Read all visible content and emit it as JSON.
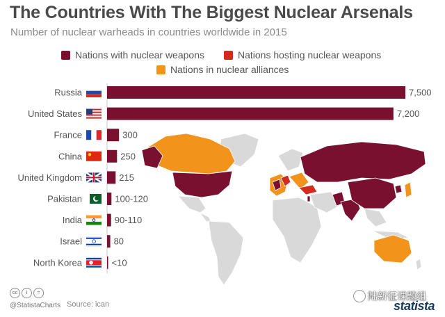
{
  "title": "The Countries With The Biggest Nuclear Arsenals",
  "subtitle": "Number of nuclear warheads in countries worldwide in 2015",
  "legend": [
    {
      "label": "Nations with nuclear weapons",
      "color": "#7a1030"
    },
    {
      "label": "Nations hosting nuclear weapons",
      "color": "#d42a1e"
    },
    {
      "label": "Nations in nuclear alliances",
      "color": "#f2931c"
    }
  ],
  "colors": {
    "bar": "#7a1030",
    "land": "#d9d9d9",
    "alliance": "#f2931c",
    "host": "#d42a1e"
  },
  "chart_data": {
    "type": "bar",
    "orientation": "horizontal",
    "categories": [
      "Russia",
      "United States",
      "France",
      "China",
      "United Kingdom",
      "Pakistan",
      "India",
      "Israel",
      "North Korea"
    ],
    "values": [
      7500,
      7200,
      300,
      250,
      215,
      110,
      100,
      80,
      10
    ],
    "value_labels": [
      "7,500",
      "7,200",
      "300",
      "250",
      "215",
      "100-120",
      "90-110",
      "80",
      "<10"
    ],
    "flags": [
      "russia-flag",
      "usa-flag",
      "france-flag",
      "china-flag",
      "uk-flag",
      "pakistan-flag",
      "india-flag",
      "israel-flag",
      "north-korea-flag"
    ],
    "title": "The Countries With The Biggest Nuclear Arsenals",
    "xlim": [
      0,
      7500
    ]
  },
  "footer": {
    "handle": "@StatistaCharts",
    "source": "Source: ican",
    "brand": "statista",
    "watermark": "陆新征课题组",
    "cc_icons": [
      "cc",
      "i",
      "="
    ]
  }
}
